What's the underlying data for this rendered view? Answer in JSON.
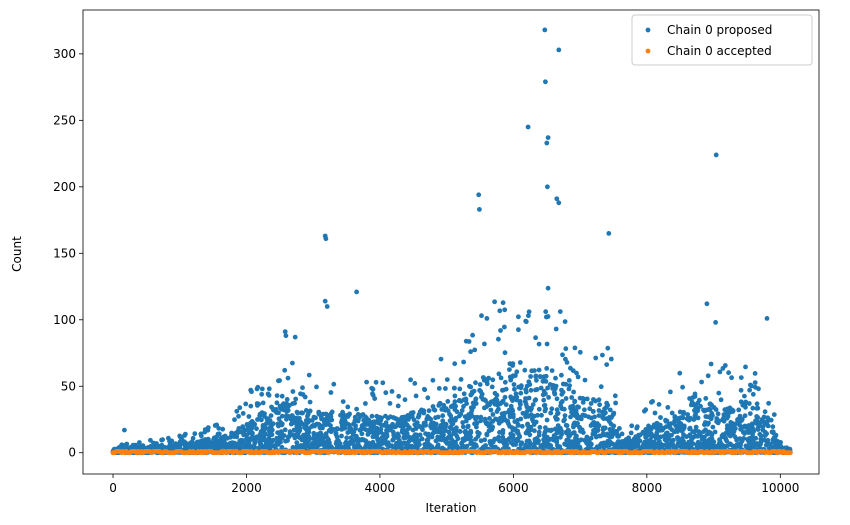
{
  "chart_data": {
    "type": "scatter",
    "xlabel": "Iteration",
    "ylabel": "Count",
    "xlim": [
      -450,
      10580
    ],
    "ylim": [
      -16,
      333
    ],
    "xticks": [
      0,
      2000,
      4000,
      6000,
      8000,
      10000
    ],
    "yticks": [
      0,
      50,
      100,
      150,
      200,
      250,
      300
    ],
    "xtick_labels": [
      "0",
      "2000",
      "4000",
      "6000",
      "8000",
      "10000"
    ],
    "ytick_labels": [
      "0",
      "50",
      "100",
      "150",
      "200",
      "250",
      "300"
    ],
    "grid": false,
    "legend_position": "top-right",
    "series": [
      {
        "name": "Chain 0 proposed",
        "color": "#1f77b4",
        "x_range": [
          0,
          10150
        ],
        "notable_points": [
          {
            "x": 170,
            "y": 17
          },
          {
            "x": 2580,
            "y": 91
          },
          {
            "x": 2590,
            "y": 88
          },
          {
            "x": 2730,
            "y": 87
          },
          {
            "x": 3180,
            "y": 163
          },
          {
            "x": 3190,
            "y": 161
          },
          {
            "x": 3180,
            "y": 114
          },
          {
            "x": 3210,
            "y": 110
          },
          {
            "x": 3650,
            "y": 121
          },
          {
            "x": 5480,
            "y": 194
          },
          {
            "x": 5490,
            "y": 183
          },
          {
            "x": 6220,
            "y": 245
          },
          {
            "x": 6470,
            "y": 318
          },
          {
            "x": 6480,
            "y": 279
          },
          {
            "x": 6500,
            "y": 233
          },
          {
            "x": 6520,
            "y": 237
          },
          {
            "x": 6510,
            "y": 200
          },
          {
            "x": 6680,
            "y": 303
          },
          {
            "x": 6650,
            "y": 191
          },
          {
            "x": 6680,
            "y": 188
          },
          {
            "x": 7430,
            "y": 165
          },
          {
            "x": 8900,
            "y": 112
          },
          {
            "x": 9040,
            "y": 224
          },
          {
            "x": 9030,
            "y": 98
          },
          {
            "x": 9800,
            "y": 101
          }
        ],
        "envelope": {
          "x": [
            0,
            300,
            800,
            1200,
            1800,
            2200,
            2600,
            3000,
            3400,
            3900,
            4300,
            4700,
            5100,
            5400,
            5700,
            6000,
            6300,
            6500,
            6700,
            7000,
            7300,
            7450,
            7600,
            7900,
            8200,
            8500,
            8800,
            9100,
            9500,
            9800,
            10000,
            10150
          ],
          "y": [
            2,
            3,
            4,
            6,
            10,
            22,
            28,
            22,
            22,
            20,
            20,
            24,
            30,
            38,
            42,
            44,
            45,
            48,
            42,
            30,
            28,
            30,
            6,
            10,
            18,
            24,
            28,
            25,
            28,
            25,
            3,
            1
          ]
        }
      },
      {
        "name": "Chain 0 accepted",
        "color": "#ff7f0e",
        "x_range": [
          0,
          10150
        ],
        "values": "0 or 1 at every iteration"
      }
    ]
  }
}
